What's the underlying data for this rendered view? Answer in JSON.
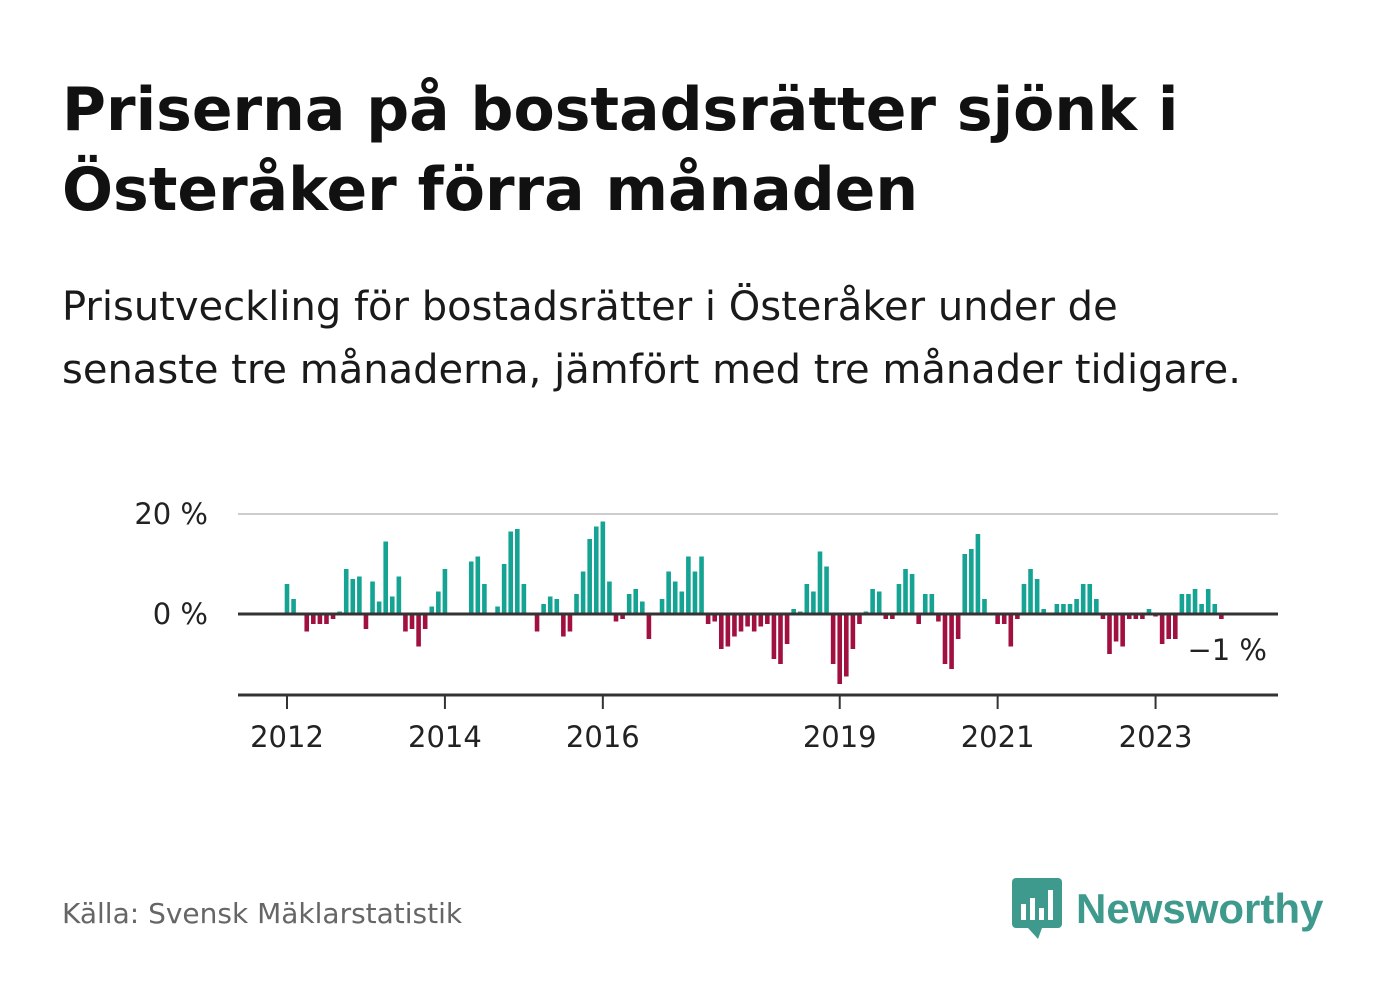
{
  "title": "Priserna på bostadsrätter sjönk i Österåker förra månaden",
  "subtitle": "Prisutveckling för bostadsrätter i Österåker under de senaste tre månaderna, jämfört med tre månader tidigare.",
  "source": "Källa: Svensk Mäklarstatistik",
  "brand": {
    "name": "Newsworthy",
    "icon": "newsworthy-bar-chart-icon"
  },
  "colors": {
    "positive": "#15a393",
    "negative": "#a0113f",
    "axis": "#333333",
    "grid": "#cccccc"
  },
  "chart_data": {
    "type": "bar",
    "title": "",
    "xlabel": "",
    "ylabel": "",
    "unit": "%",
    "ylim": [
      -16,
      20
    ],
    "y_ticks": [
      {
        "value": 20,
        "label": "20 %"
      },
      {
        "value": 0,
        "label": "0 %"
      }
    ],
    "x_ticks": [
      {
        "index": 12,
        "label": "2012"
      },
      {
        "index": 36,
        "label": "2014"
      },
      {
        "index": 60,
        "label": "2016"
      },
      {
        "index": 96,
        "label": "2019"
      },
      {
        "index": 120,
        "label": "2021"
      },
      {
        "index": 144,
        "label": "2023"
      }
    ],
    "last_label": "−1 %",
    "categories_start": "2011-01",
    "values": [
      0,
      0,
      0,
      0,
      0,
      0,
      0,
      0,
      0,
      0,
      0,
      0,
      6,
      3,
      0,
      -3.5,
      -2,
      -2,
      -2,
      -1,
      0.5,
      9,
      7,
      7.5,
      -3,
      6.5,
      2.5,
      14.5,
      3.5,
      7.5,
      -3.5,
      -3,
      -6.5,
      -3,
      1.5,
      4.5,
      9,
      0,
      0,
      0,
      10.5,
      11.5,
      6,
      0,
      1.5,
      10,
      16.5,
      17,
      6,
      0,
      -3.5,
      2,
      3.5,
      3,
      -4.5,
      -3.5,
      4,
      8.5,
      15,
      17.5,
      18.5,
      6.5,
      -1.5,
      -1,
      4,
      5,
      2.5,
      -5,
      0,
      3,
      8.5,
      6.5,
      4.5,
      11.5,
      8.5,
      11.5,
      -2,
      -1.5,
      -7,
      -6.5,
      -4.5,
      -3.5,
      -2.5,
      -3.5,
      -2.5,
      -2,
      -9,
      -10,
      -6,
      1,
      0.5,
      6,
      4.5,
      12.5,
      9.5,
      -10,
      -14,
      -12.5,
      -7,
      -2,
      0.5,
      5,
      4.5,
      -1,
      -1,
      6,
      9,
      8,
      -2,
      4,
      4,
      -1.5,
      -10,
      -11,
      -5,
      12,
      13,
      16,
      3,
      0,
      -2,
      -2,
      -6.5,
      -1,
      6,
      9,
      7,
      1,
      0,
      2,
      2,
      2,
      3,
      6,
      6,
      3,
      -1,
      -8,
      -5.5,
      -6.5,
      -1,
      -1,
      -1,
      1,
      -0.5,
      -6,
      -5,
      -5,
      4,
      4,
      5,
      2,
      5,
      2,
      -1
    ]
  }
}
